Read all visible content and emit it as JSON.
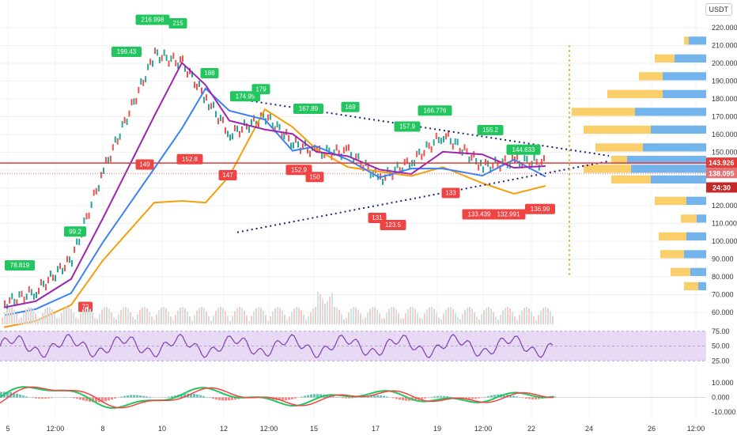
{
  "header": {
    "currency": "USDT"
  },
  "price_axis": {
    "ticks": [
      "220.000",
      "210.000",
      "200.000",
      "190.000",
      "180.000",
      "170.000",
      "160.000",
      "150.000",
      "140.000",
      "130.000",
      "120.000",
      "110.000",
      "100.000",
      "90.000",
      "80.000",
      "70.000",
      "60.000"
    ],
    "current_price": "143.926",
    "secondary_price": "138.095",
    "countdown": "24:30"
  },
  "rsi_axis": {
    "ticks": [
      "75.00",
      "50.00",
      "25.00"
    ]
  },
  "macd_axis": {
    "ticks": [
      "10.000",
      "0.000",
      "-10.000"
    ]
  },
  "time_axis": {
    "ticks": [
      "5",
      "12:00",
      "8",
      "10",
      "12",
      "12:00",
      "15",
      "17",
      "19",
      "12:00",
      "22",
      "24",
      "26",
      "12:00"
    ]
  },
  "colors": {
    "up_flag": "#22c55e",
    "down_flag": "#ef4444",
    "ema_orange": "#f59e0b",
    "ema_blue": "#3b82f6",
    "ema_purple": "#9c27b0",
    "trend_line": "#1a237e",
    "rsi": "#7e3fb0",
    "rsi_band": "#e8d9f5",
    "volume_profile_yellow": "#f9c74f",
    "volume_profile_blue": "#5aa7ea"
  },
  "chart_data": {
    "type": "line",
    "ylim": [
      55,
      225
    ],
    "price_series": [
      {
        "x": "5",
        "y": 65
      },
      {
        "x": "6",
        "y": 72
      },
      {
        "x": "7",
        "y": 90
      },
      {
        "x": "8",
        "y": 140
      },
      {
        "x": "9",
        "y": 205
      },
      {
        "x": "10",
        "y": 200
      },
      {
        "x": "11",
        "y": 180
      },
      {
        "x": "12",
        "y": 160
      },
      {
        "x": "13",
        "y": 170
      },
      {
        "x": "14",
        "y": 155
      },
      {
        "x": "15",
        "y": 150
      },
      {
        "x": "16",
        "y": 150
      },
      {
        "x": "17",
        "y": 135
      },
      {
        "x": "18",
        "y": 145
      },
      {
        "x": "19",
        "y": 160
      },
      {
        "x": "20",
        "y": 142
      },
      {
        "x": "21",
        "y": 145
      },
      {
        "x": "22",
        "y": 143.926
      }
    ],
    "up_labels": [
      "78.819",
      "99.2",
      "199.43",
      "216.998",
      "215",
      "188",
      "174.95",
      "179",
      "167.89",
      "169",
      "157.9",
      "166.776",
      "155.2",
      "144.633"
    ],
    "down_labels": [
      "72",
      "149",
      "152.8",
      "147",
      "152.9",
      "150",
      "131",
      "123.5",
      "133",
      "133.439",
      "132.991",
      "136.99"
    ],
    "rsi_range": [
      25,
      75
    ]
  }
}
